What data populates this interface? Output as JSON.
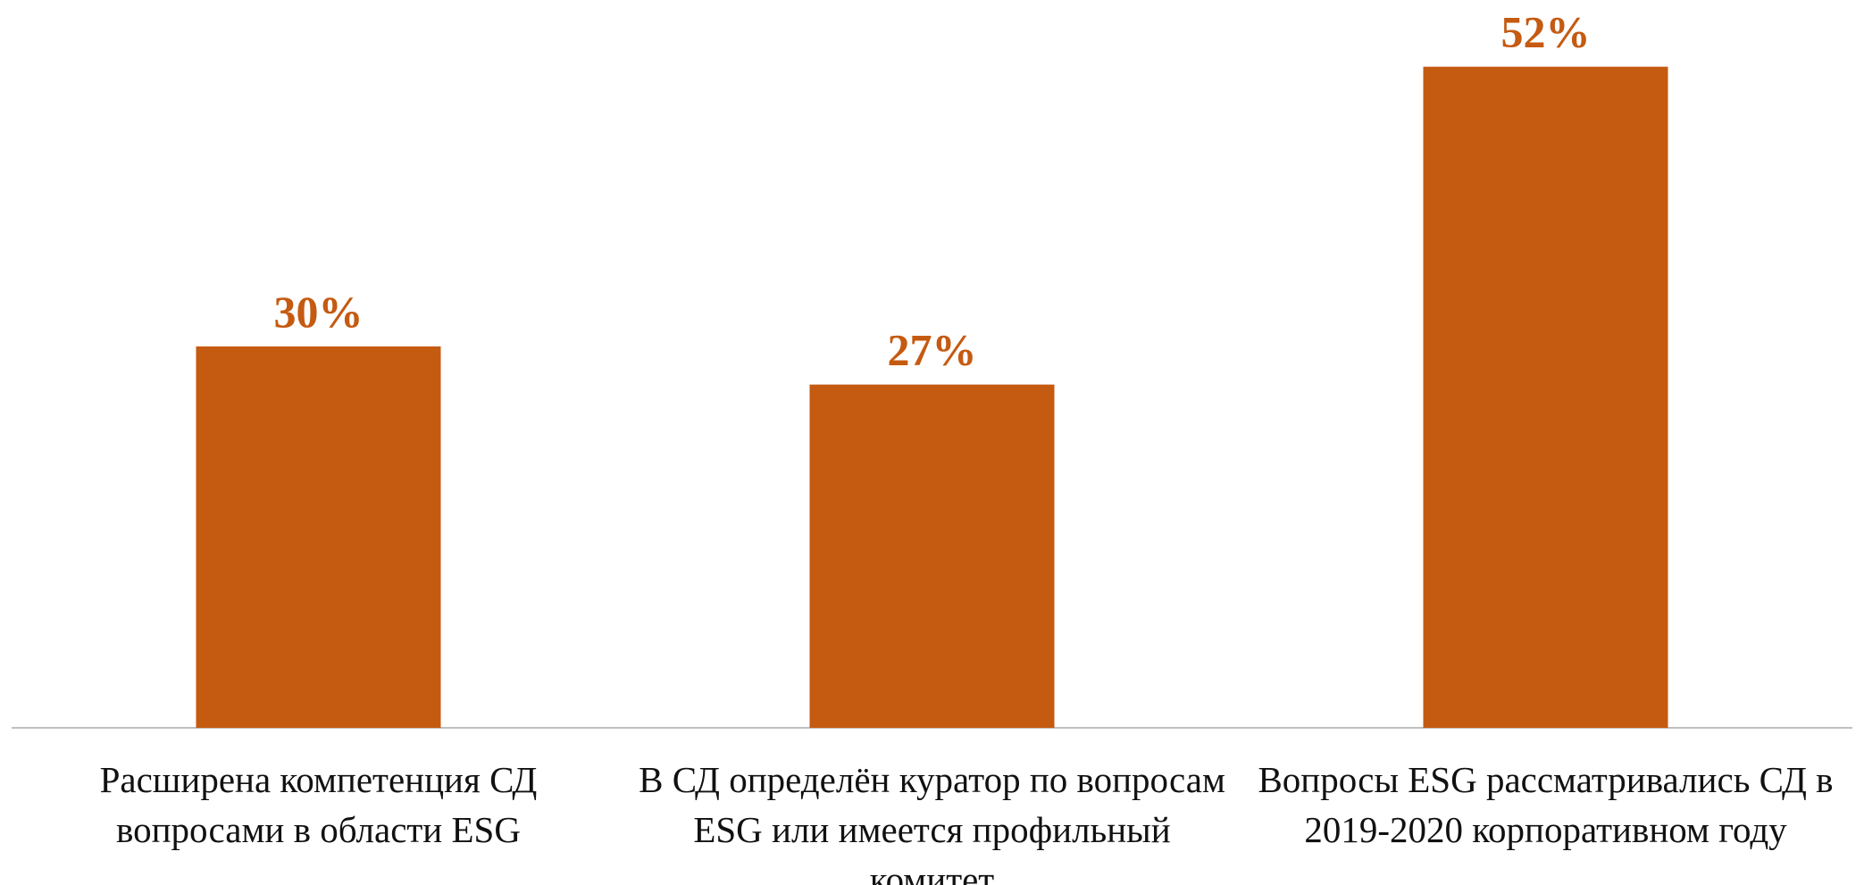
{
  "chart_data": {
    "type": "bar",
    "categories": [
      "Расширена компетенция СД вопросами в области ESG",
      "В СД определён куратор по вопросам ESG или имеется профильный комитет",
      "Вопросы ESG рассматривались СД в 2019-2020 корпоративном году"
    ],
    "values": [
      30,
      27,
      52
    ],
    "value_labels": [
      "30%",
      "27%",
      "52%"
    ],
    "color": "#c55a11",
    "ylim": [
      0,
      55
    ]
  }
}
